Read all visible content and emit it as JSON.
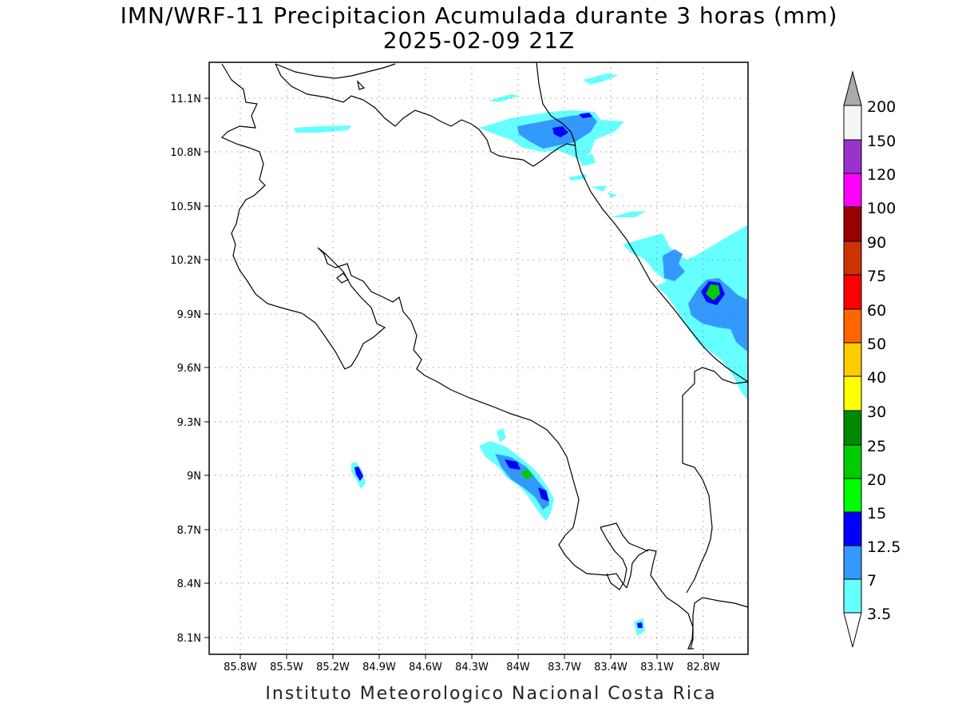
{
  "title": {
    "line1": "IMN/WRF-11 Precipitacion Acumulada durante 3 horas (mm)",
    "line2": "2025-02-09 21Z"
  },
  "footer": "Instituto Meteorologico Nacional Costa Rica",
  "map": {
    "lon_ticks": [
      "85.8W",
      "85.5W",
      "85.2W",
      "84.9W",
      "84.6W",
      "84.3W",
      "84W",
      "83.7W",
      "83.4W",
      "83.1W",
      "82.8W"
    ],
    "lat_ticks": [
      "11.1N",
      "10.8N",
      "10.5N",
      "10.2N",
      "9.9N",
      "9.6N",
      "9.3N",
      "9N",
      "8.7N",
      "8.4N",
      "8.1N"
    ],
    "grid": "dotted",
    "frame_color": "#000000"
  },
  "colorbar": {
    "labels": [
      "3.5",
      "7",
      "12.5",
      "15",
      "20",
      "25",
      "30",
      "40",
      "50",
      "60",
      "75",
      "90",
      "100",
      "120",
      "150",
      "200"
    ],
    "colors": [
      "#66ffff",
      "#3399ff",
      "#0000ff",
      "#00ff00",
      "#00cc00",
      "#008800",
      "#ffff00",
      "#ffcc00",
      "#ff6600",
      "#ff0000",
      "#cc3300",
      "#990000",
      "#ff00ff",
      "#9933cc",
      "#f5f5f5",
      "#aaaaaa"
    ]
  },
  "precip_colors": {
    "c3": "#66ffff",
    "c7": "#3399ff",
    "c12": "#0000ff",
    "c20": "#00cc00"
  }
}
